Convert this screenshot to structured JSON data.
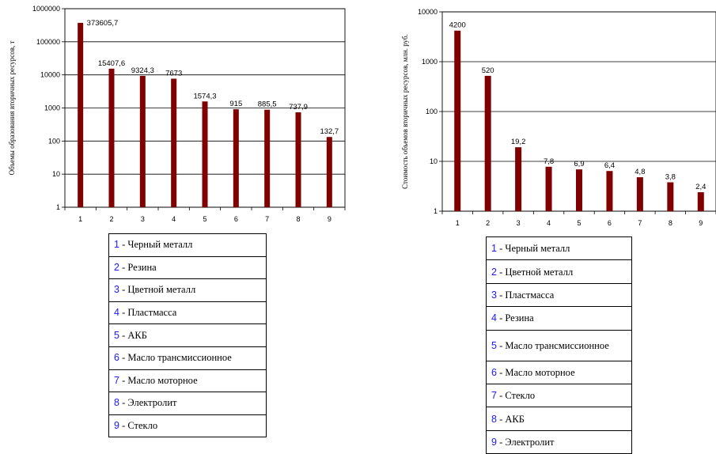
{
  "chart_data": [
    {
      "type": "bar",
      "yscale": "log",
      "ylabel": "Объемы образования вторичных ресурсов, т",
      "ylim": [
        1,
        1000000
      ],
      "yticks": [
        "1",
        "10",
        "100",
        "1000",
        "10000",
        "100000",
        "1000000"
      ],
      "categories": [
        "1",
        "2",
        "3",
        "4",
        "5",
        "6",
        "7",
        "8",
        "9"
      ],
      "values": [
        373605.7,
        15407.6,
        9324.3,
        7673,
        1574.3,
        915,
        885.5,
        737.9,
        132.7
      ],
      "labels": [
        "373605,7",
        "15407,6",
        "9324,3",
        "7673",
        "1574,3",
        "915",
        "885,5",
        "737,9",
        "132,7"
      ],
      "bar_color": "#800000",
      "grid": true,
      "legend": [
        {
          "num": "1",
          "text": " - Черный металл"
        },
        {
          "num": "2",
          "text": " - Резина"
        },
        {
          "num": "3",
          "text": " - Цветной металл"
        },
        {
          "num": "4",
          "text": " - Пластмасса"
        },
        {
          "num": "5",
          "text": " - АКБ"
        },
        {
          "num": "6",
          "text": " - Масло трансмиссионное"
        },
        {
          "num": "7",
          "text": " - Масло моторное"
        },
        {
          "num": "8",
          "text": " - Электролит"
        },
        {
          "num": "9",
          "text": " - Стекло"
        }
      ]
    },
    {
      "type": "bar",
      "yscale": "log",
      "ylabel": "Стоимость объемов вторичных ресурсов, млн. руб.",
      "ylim": [
        1,
        10000
      ],
      "yticks": [
        "1",
        "10",
        "100",
        "1000",
        "10000"
      ],
      "categories": [
        "1",
        "2",
        "3",
        "4",
        "5",
        "6",
        "7",
        "8",
        "9"
      ],
      "values": [
        4200,
        520,
        19.2,
        7.8,
        6.9,
        6.4,
        4.8,
        3.8,
        2.4
      ],
      "labels": [
        "4200",
        "520",
        "19,2",
        "7,8",
        "6,9",
        "6,4",
        "4,8",
        "3,8",
        "2,4"
      ],
      "bar_color": "#800000",
      "grid": true,
      "legend": [
        {
          "num": "1",
          "text": " - Черный металл"
        },
        {
          "num": "2",
          "text": " - Цветной металл"
        },
        {
          "num": "3",
          "text": " - Пластмасса"
        },
        {
          "num": "4",
          "text": " - Резина"
        },
        {
          "num": "5",
          "text": " - Масло трансмиссионное"
        },
        {
          "num": "6",
          "text": " - Масло моторное"
        },
        {
          "num": "7",
          "text": " - Стекло"
        },
        {
          "num": "8",
          "text": " - АКБ"
        },
        {
          "num": "9",
          "text": " - Электролит"
        }
      ]
    }
  ]
}
